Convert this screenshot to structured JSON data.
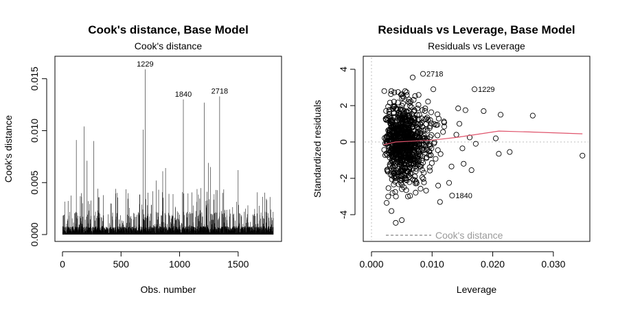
{
  "chart_data": [
    {
      "type": "bar",
      "title": "Cook's distance, Base Model",
      "subtitle": "Cook's distance",
      "xlabel": "Obs. number",
      "ylabel": "Cook's distance",
      "xlim": [
        0,
        1800
      ],
      "ylim": [
        0,
        0.0165
      ],
      "x_ticks": [
        "0",
        "500",
        "1000",
        "1500"
      ],
      "y_ticks": [
        "0.000",
        "0.005",
        "0.010",
        "0.015"
      ],
      "n_observations": 1800,
      "highlighted": [
        {
          "label": "1229",
          "x": 706,
          "y": 0.0159
        },
        {
          "label": "1840",
          "x": 1032,
          "y": 0.013
        },
        {
          "label": "2718",
          "x": 1342,
          "y": 0.0133
        }
      ],
      "tall_bars": [
        {
          "x": 118,
          "y": 0.0091
        },
        {
          "x": 185,
          "y": 0.0104
        },
        {
          "x": 210,
          "y": 0.0071
        },
        {
          "x": 268,
          "y": 0.009
        },
        {
          "x": 690,
          "y": 0.0101
        },
        {
          "x": 706,
          "y": 0.0159
        },
        {
          "x": 800,
          "y": 0.0052
        },
        {
          "x": 856,
          "y": 0.0061
        },
        {
          "x": 880,
          "y": 0.0064
        },
        {
          "x": 1032,
          "y": 0.013
        },
        {
          "x": 1212,
          "y": 0.0127
        },
        {
          "x": 1245,
          "y": 0.0069
        },
        {
          "x": 1265,
          "y": 0.0065
        },
        {
          "x": 1342,
          "y": 0.0133
        },
        {
          "x": 1500,
          "y": 0.0062
        }
      ],
      "grid": false
    },
    {
      "type": "scatter",
      "title": "Residuals vs Leverage, Base Model",
      "subtitle": "Residuals vs Leverage",
      "xlabel": "Leverage",
      "ylabel": "Standardized residuals",
      "xlim": [
        0,
        0.035
      ],
      "ylim": [
        -5,
        4.2
      ],
      "x_ticks": [
        "0.000",
        "0.010",
        "0.020",
        "0.030"
      ],
      "y_ticks": [
        "-4",
        "-2",
        "0",
        "2",
        "4"
      ],
      "labeled_points": [
        {
          "label": "2718",
          "x": 0.0085,
          "y": 3.75
        },
        {
          "label": "1229",
          "x": 0.017,
          "y": 2.9
        },
        {
          "label": "1840",
          "x": 0.0133,
          "y": -2.95
        }
      ],
      "outer_points": [
        {
          "x": 0.0068,
          "y": 3.55
        },
        {
          "x": 0.0102,
          "y": 2.9
        },
        {
          "x": 0.0143,
          "y": 1.85
        },
        {
          "x": 0.0155,
          "y": 1.75
        },
        {
          "x": 0.0185,
          "y": 1.7
        },
        {
          "x": 0.0213,
          "y": 1.5
        },
        {
          "x": 0.0266,
          "y": 1.45
        },
        {
          "x": 0.0348,
          "y": -0.75
        },
        {
          "x": 0.0228,
          "y": -0.55
        },
        {
          "x": 0.0205,
          "y": 0.2
        },
        {
          "x": 0.021,
          "y": -0.65
        },
        {
          "x": 0.0165,
          "y": -1.55
        },
        {
          "x": 0.0152,
          "y": -1.2
        },
        {
          "x": 0.0113,
          "y": -3.3
        },
        {
          "x": 0.0025,
          "y": -3.35
        },
        {
          "x": 0.004,
          "y": -4.45
        },
        {
          "x": 0.005,
          "y": -4.3
        },
        {
          "x": 0.0033,
          "y": -3.8
        },
        {
          "x": 0.0172,
          "y": -0.1
        },
        {
          "x": 0.0128,
          "y": -2.25
        },
        {
          "x": 0.0162,
          "y": 0.25
        },
        {
          "x": 0.014,
          "y": 0.4
        },
        {
          "x": 0.015,
          "y": -0.35
        },
        {
          "x": 0.0145,
          "y": 1.0
        },
        {
          "x": 0.0132,
          "y": -1.35
        },
        {
          "x": 0.0118,
          "y": 0.55
        },
        {
          "x": 0.011,
          "y": -2.4
        }
      ],
      "cloud": {
        "x_range": [
          0.002,
          0.012
        ],
        "y_range": [
          -3.0,
          2.8
        ]
      },
      "smoother": {
        "x": [
          0.002,
          0.004,
          0.007,
          0.01,
          0.014,
          0.018,
          0.021,
          0.026,
          0.0348
        ],
        "y": [
          -0.15,
          0.0,
          0.05,
          0.1,
          0.25,
          0.45,
          0.6,
          0.55,
          0.45
        ],
        "color": "#df536b"
      },
      "reference_line_color": "#bebebe",
      "legend": {
        "text": "Cook's distance",
        "position": "bottom-left"
      },
      "grid": false
    }
  ]
}
